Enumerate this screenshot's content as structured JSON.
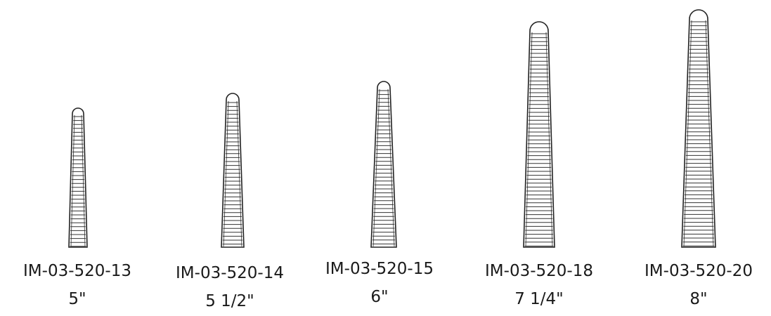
{
  "instruments": [
    {
      "code": "IM-03-520-13",
      "size": "5\""
    },
    {
      "code": "IM-03-520-14",
      "size": "5 1/2\""
    },
    {
      "code": "IM-03-520-15",
      "size": "6\""
    },
    {
      "code": "IM-03-520-18",
      "size": "7 1/4\""
    },
    {
      "code": "IM-03-520-20",
      "size": "8\""
    }
  ]
}
